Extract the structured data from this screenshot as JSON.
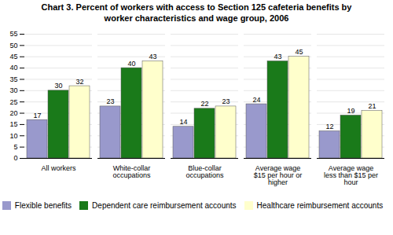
{
  "chart_data": {
    "type": "bar",
    "title": "Chart 3. Percent of workers with access to Section 125 cafeteria benefits by\nworker characteristics and wage group, 2006",
    "categories": [
      "All workers",
      "White-collar\noccupations",
      "Blue-collar\noccupations",
      "Average wage\n$15 per hour or\nhigher",
      "Average wage\nless than $15 per\nhour"
    ],
    "series": [
      {
        "name": "Flexible benefits",
        "color": "#9999cc",
        "values": [
          17,
          23,
          14,
          24,
          12
        ]
      },
      {
        "name": "Dependent care reimbursement accounts",
        "color": "#1a7a1a",
        "values": [
          30,
          40,
          22,
          43,
          19
        ]
      },
      {
        "name": "Healthcare reimbursement accounts",
        "color": "#ffffcc",
        "values": [
          32,
          43,
          23,
          45,
          21
        ]
      }
    ],
    "ylim": [
      0,
      55
    ],
    "yticks": [
      0,
      5,
      10,
      15,
      20,
      25,
      30,
      35,
      40,
      45,
      50,
      55
    ],
    "grid": true,
    "data_labels": true,
    "legend": "bottom"
  }
}
